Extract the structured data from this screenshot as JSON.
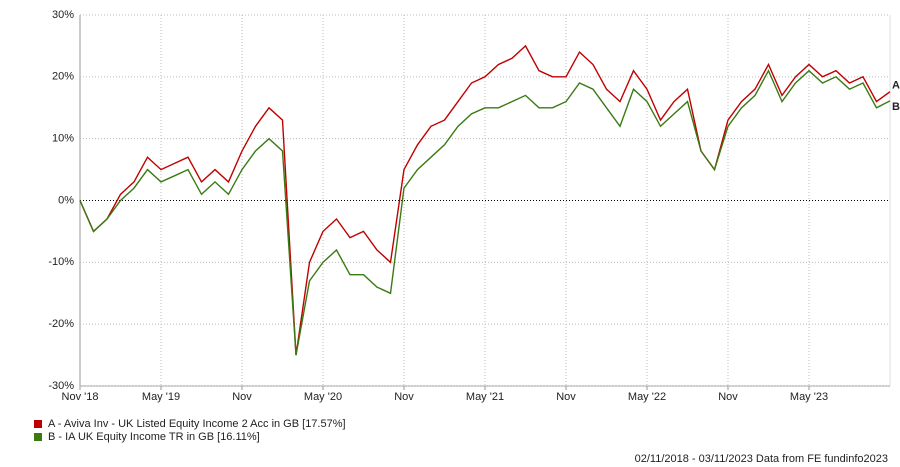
{
  "chart_data": {
    "type": "line",
    "x": [
      "2018-11",
      "2018-12",
      "2019-01",
      "2019-02",
      "2019-03",
      "2019-04",
      "2019-05",
      "2019-06",
      "2019-07",
      "2019-08",
      "2019-09",
      "2019-10",
      "2019-11",
      "2019-12",
      "2020-01",
      "2020-02",
      "2020-03",
      "2020-04",
      "2020-05",
      "2020-06",
      "2020-07",
      "2020-08",
      "2020-09",
      "2020-10",
      "2020-11",
      "2020-12",
      "2021-01",
      "2021-02",
      "2021-03",
      "2021-04",
      "2021-05",
      "2021-06",
      "2021-07",
      "2021-08",
      "2021-09",
      "2021-10",
      "2021-11",
      "2021-12",
      "2022-01",
      "2022-02",
      "2022-03",
      "2022-04",
      "2022-05",
      "2022-06",
      "2022-07",
      "2022-08",
      "2022-09",
      "2022-10",
      "2022-11",
      "2022-12",
      "2023-01",
      "2023-02",
      "2023-03",
      "2023-04",
      "2023-05",
      "2023-06",
      "2023-07",
      "2023-08",
      "2023-09",
      "2023-10",
      "2023-11"
    ],
    "series": [
      {
        "name": "A - Aviva Inv - UK Listed Equity Income 2 Acc in GB [17.57%]",
        "marker": "A",
        "color": "#c00000",
        "values": [
          0,
          -5,
          -3,
          1,
          3,
          7,
          5,
          6,
          7,
          3,
          5,
          3,
          8,
          12,
          15,
          13,
          -25,
          -10,
          -5,
          -3,
          -6,
          -5,
          -8,
          -10,
          5,
          9,
          12,
          13,
          16,
          19,
          20,
          22,
          23,
          25,
          21,
          20,
          20,
          24,
          22,
          18,
          16,
          21,
          18,
          13,
          16,
          18,
          8,
          5,
          13,
          16,
          18,
          22,
          17,
          20,
          22,
          20,
          21,
          19,
          20,
          16,
          17.6
        ]
      },
      {
        "name": "B - IA UK Equity Income TR in GB [16.11%]",
        "marker": "B",
        "color": "#3a7a13",
        "values": [
          0,
          -5,
          -3,
          0,
          2,
          5,
          3,
          4,
          5,
          1,
          3,
          1,
          5,
          8,
          10,
          8,
          -25,
          -13,
          -10,
          -8,
          -12,
          -12,
          -14,
          -15,
          2,
          5,
          7,
          9,
          12,
          14,
          15,
          15,
          16,
          17,
          15,
          15,
          16,
          19,
          18,
          15,
          12,
          18,
          16,
          12,
          14,
          16,
          8,
          5,
          12,
          15,
          17,
          21,
          16,
          19,
          21,
          19,
          20,
          18,
          19,
          15,
          16.1
        ]
      }
    ],
    "ylim": [
      -30,
      30
    ],
    "yticks": [
      {
        "value": -30,
        "label": "-30%"
      },
      {
        "value": -20,
        "label": "-20%"
      },
      {
        "value": -10,
        "label": "-10%"
      },
      {
        "value": 0,
        "label": "0%"
      },
      {
        "value": 10,
        "label": "10%"
      },
      {
        "value": 20,
        "label": "20%"
      },
      {
        "value": 30,
        "label": "30%"
      }
    ],
    "xticks": [
      {
        "value": "2018-11",
        "label": "Nov '18"
      },
      {
        "value": "2019-05",
        "label": "May '19"
      },
      {
        "value": "2019-11",
        "label": "Nov"
      },
      {
        "value": "2020-05",
        "label": "May '20"
      },
      {
        "value": "2020-11",
        "label": "Nov"
      },
      {
        "value": "2021-05",
        "label": "May '21"
      },
      {
        "value": "2021-11",
        "label": "Nov"
      },
      {
        "value": "2022-05",
        "label": "May '22"
      },
      {
        "value": "2022-11",
        "label": "Nov"
      },
      {
        "value": "2023-05",
        "label": "May '23"
      }
    ],
    "grid": true,
    "footer": "02/11/2018 - 03/11/2023 Data from FE fundinfo2023"
  }
}
